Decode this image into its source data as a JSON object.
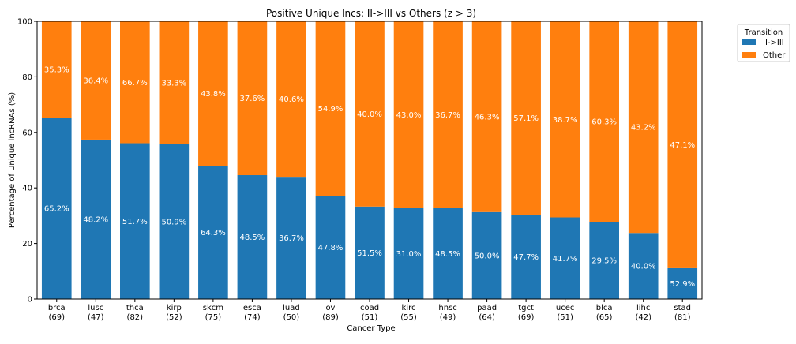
{
  "chart_data": {
    "type": "bar",
    "stacked": true,
    "title": "Positive Unique lncs: II->III vs Others (z > 3)",
    "xlabel": "Cancer Type",
    "ylabel": "Percentage of Unique lncRNAs (%)",
    "ylim": [
      0,
      100
    ],
    "yticks": [
      "0",
      "20",
      "40",
      "60",
      "80",
      "100"
    ],
    "grid": false,
    "legend": {
      "title": "Transition",
      "placement": "outside-top-right"
    },
    "categories": [
      "brca\n(69)",
      "lusc\n(47)",
      "thca\n(82)",
      "kirp\n(52)",
      "skcm\n(75)",
      "esca\n(74)",
      "luad\n(50)",
      "ov\n(89)",
      "coad\n(51)",
      "kirc\n(55)",
      "hnsc\n(49)",
      "paad\n(64)",
      "tgct\n(69)",
      "ucec\n(51)",
      "blca\n(65)",
      "lihc\n(42)",
      "stad\n(81)"
    ],
    "series": [
      {
        "name": "II->III",
        "color": "#1f77b4",
        "values": [
          65.2,
          57.4,
          56.1,
          55.8,
          48.0,
          44.6,
          44.0,
          37.1,
          33.3,
          32.7,
          32.7,
          31.3,
          30.4,
          29.4,
          27.7,
          23.8,
          11.1
        ],
        "labels": [
          "65.2%",
          "48.2%",
          "51.7%",
          "50.9%",
          "64.3%",
          "48.5%",
          "36.7%",
          "47.8%",
          "51.5%",
          "31.0%",
          "48.5%",
          "50.0%",
          "47.7%",
          "41.7%",
          "29.5%",
          "40.0%",
          "52.9%"
        ]
      },
      {
        "name": "Other",
        "color": "#ff7f0e",
        "values": [
          34.8,
          42.6,
          43.9,
          44.2,
          52.0,
          55.4,
          56.0,
          62.9,
          66.7,
          67.3,
          67.3,
          68.7,
          69.6,
          70.6,
          72.3,
          76.2,
          88.9
        ],
        "labels": [
          "35.3%",
          "36.4%",
          "66.7%",
          "33.3%",
          "43.8%",
          "37.6%",
          "40.6%",
          "54.9%",
          "40.0%",
          "43.0%",
          "36.7%",
          "46.3%",
          "57.1%",
          "38.7%",
          "60.3%",
          "43.2%",
          "47.1%"
        ]
      }
    ]
  }
}
